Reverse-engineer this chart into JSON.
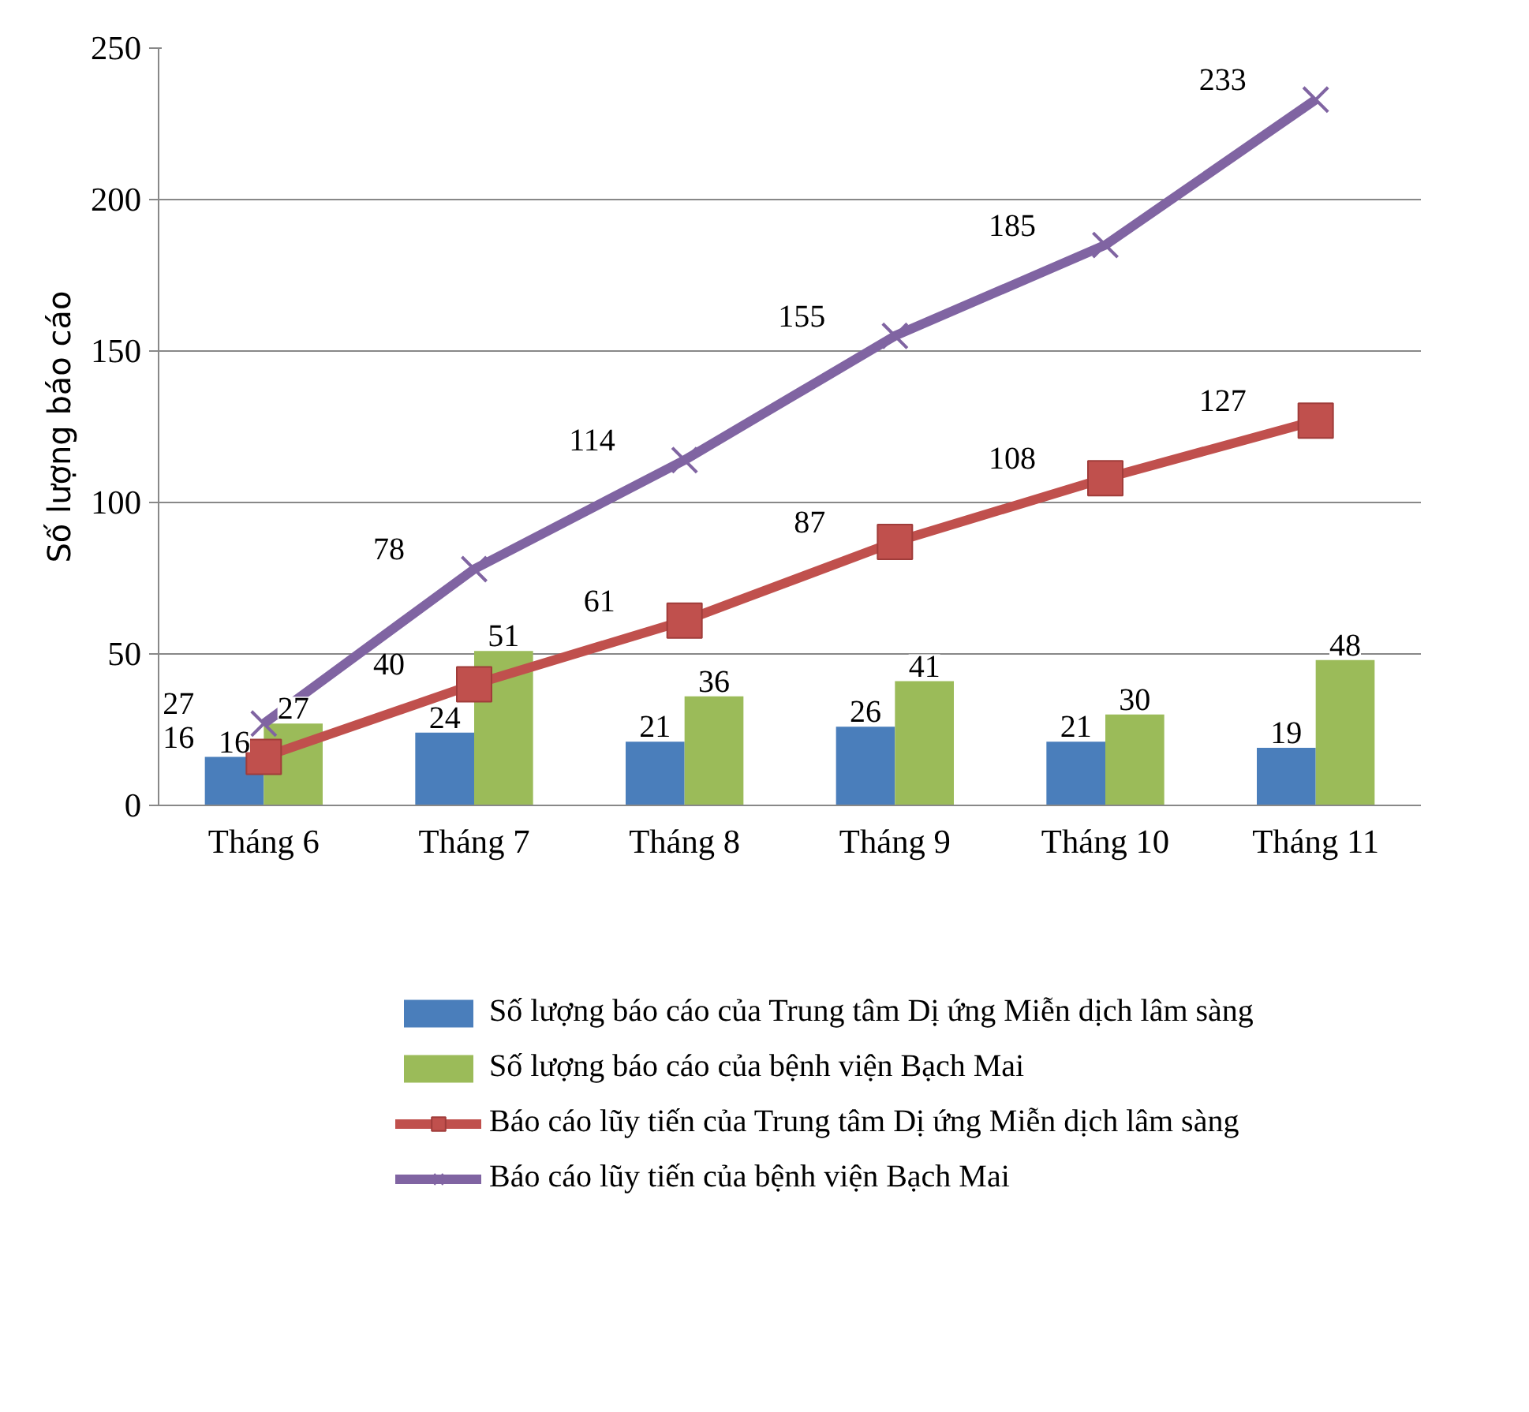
{
  "chart_data": {
    "type": "bar",
    "ylabel": "Số lượng báo cáo",
    "categories": [
      "Tháng 6",
      "Tháng 7",
      "Tháng 8",
      "Tháng 9",
      "Tháng 10",
      "Tháng 11"
    ],
    "series": [
      {
        "name": "Số lượng báo cáo của Trung tâm Dị ứng Miễn dịch lâm sàng",
        "color": "#4a7ebb",
        "values": [
          16,
          24,
          21,
          26,
          21,
          19
        ]
      },
      {
        "name": "Số lượng báo cáo của bệnh viện Bạch Mai",
        "color": "#9bbb59",
        "values": [
          27,
          51,
          36,
          41,
          30,
          48
        ]
      },
      {
        "name": "Báo cáo lũy tiến của Trung tâm Dị ứng Miễn dịch lâm sàng",
        "color": "#c0504d",
        "type": "line",
        "marker": "square",
        "values": [
          16,
          40,
          61,
          87,
          108,
          127
        ]
      },
      {
        "name": "Báo cáo lũy tiến của bệnh viện Bạch Mai",
        "color": "#8064a2",
        "type": "line",
        "marker": "cross",
        "values": [
          27,
          78,
          114,
          155,
          185,
          233
        ]
      }
    ],
    "ylim": [
      0,
      250
    ],
    "yticks": [
      0,
      50,
      100,
      150,
      200,
      250
    ],
    "grid": "y",
    "legend": "bottom",
    "data_labels": true
  }
}
